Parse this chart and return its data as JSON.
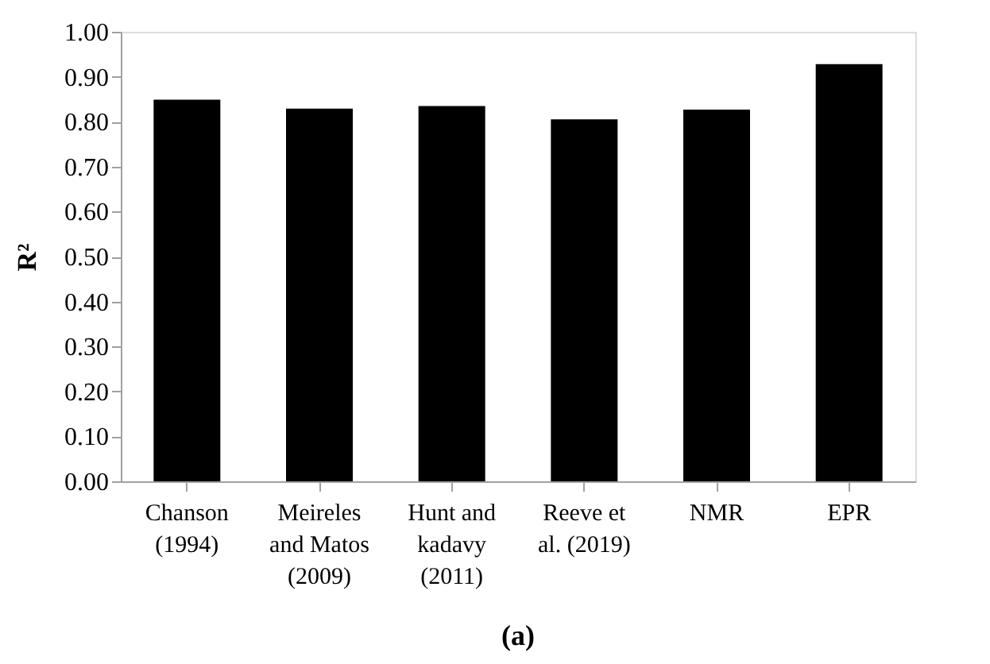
{
  "chart_data": {
    "type": "bar",
    "title": "(a)",
    "ylabel": "R²",
    "categories": [
      "Chanson (1994)",
      "Meireles and Matos (2009)",
      "Hunt and kadavy (2011)",
      "Reeve et al. (2019)",
      "NMR",
      "EPR"
    ],
    "values": [
      0.849,
      0.829,
      0.835,
      0.805,
      0.827,
      0.928
    ],
    "color": "#000000",
    "ylim": [
      0,
      1
    ],
    "yticks": [
      {
        "value": 0,
        "label": "0.00"
      },
      {
        "value": 0.1,
        "label": "0.10"
      },
      {
        "value": 0.2,
        "label": "0.20"
      },
      {
        "value": 0.3,
        "label": "0.30"
      },
      {
        "value": 0.4,
        "label": "0.40"
      },
      {
        "value": 0.5,
        "label": "0.50"
      },
      {
        "value": 0.6,
        "label": "0.60"
      },
      {
        "value": 0.7,
        "label": "0.70"
      },
      {
        "value": 0.8,
        "label": "0.80"
      },
      {
        "value": 0.9,
        "label": "0.90"
      },
      {
        "value": 1,
        "label": "1.00"
      }
    ],
    "grid": false
  }
}
